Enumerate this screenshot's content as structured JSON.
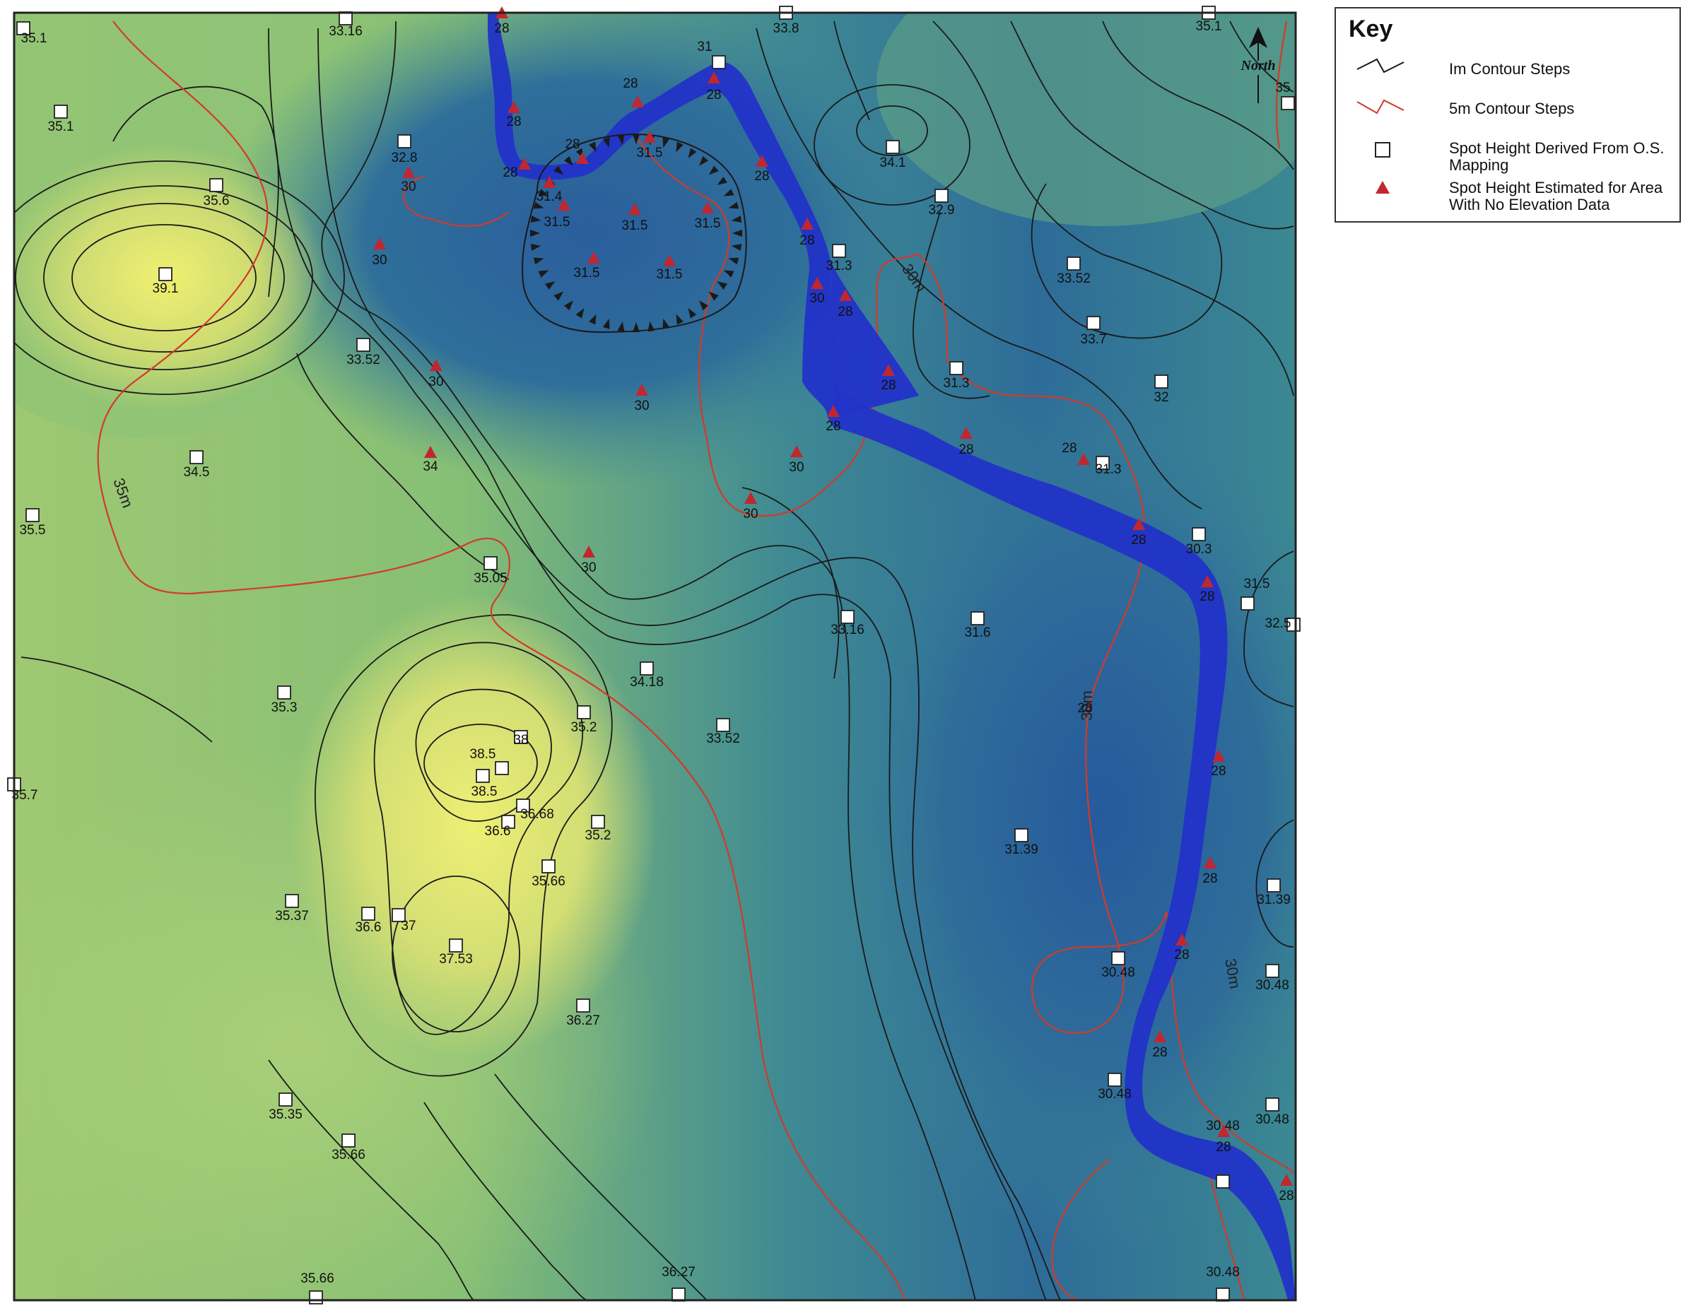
{
  "legend": {
    "title": "Key",
    "items": [
      {
        "label": "Im Contour Steps",
        "symbol": "black-line",
        "color": "#1a1a1a"
      },
      {
        "label": "5m Contour Steps",
        "symbol": "red-line",
        "color": "#d23a2a"
      },
      {
        "label": "Spot Height Derived From O.S. Mapping",
        "symbol": "white-square",
        "color": "#ffffff"
      },
      {
        "label": "Spot Height Estimated for Area With No Elevation Data",
        "symbol": "red-triangle",
        "color": "#c2262e"
      }
    ]
  },
  "north_arrow": {
    "label": "North",
    "icon": "north-arrow-icon"
  },
  "colors": {
    "high": "#e6ea6e",
    "mid": "#6fb06e",
    "low": "#1f5f95",
    "channel": "#2233c8",
    "contour_1m": "#1a1a1a",
    "contour_5m": "#d23a2a",
    "estimated_marker": "#c2262e"
  },
  "contour_labels": [
    "35m",
    "30m",
    "30m",
    "30m"
  ],
  "os_spot_heights": [
    "35.1",
    "33.16",
    "33.8",
    "35.1",
    "35.1",
    "35",
    "32.8",
    "35.6",
    "34.1",
    "39.1",
    "31",
    "32.9",
    "31.3",
    "33.52",
    "33.52",
    "33.7",
    "32",
    "31.3",
    "34.5",
    "31.3",
    "35.5",
    "30.3",
    "35.05",
    "33.16",
    "31.6",
    "31.5",
    "32.5",
    "34.18",
    "35.3",
    "35.2",
    "33.52",
    "38",
    "38.5",
    "38.5",
    "35.7",
    "36.68",
    "36.6",
    "35.2",
    "35.66",
    "31.39",
    "31.39",
    "35.37",
    "36.6",
    "37",
    "37.53",
    "30.48",
    "30.48",
    "36.27",
    "30.48",
    "35.35",
    "30.48",
    "35.66",
    "30.48",
    "35.66",
    "36.27",
    "30.48"
  ],
  "estimated_spot_heights": [
    "28",
    "28",
    "28",
    "28",
    "28",
    "30",
    "28",
    "31.5",
    "28",
    "31.4",
    "31.5",
    "31.5",
    "31.5",
    "30",
    "28",
    "31.5",
    "31.5",
    "30",
    "28",
    "28",
    "30",
    "30",
    "28",
    "28",
    "34",
    "30",
    "28",
    "28",
    "30",
    "28",
    "30",
    "28",
    "28",
    "28",
    "28",
    "28",
    "28",
    "28"
  ],
  "estimated_labels_unplaced": [
    "28"
  ]
}
